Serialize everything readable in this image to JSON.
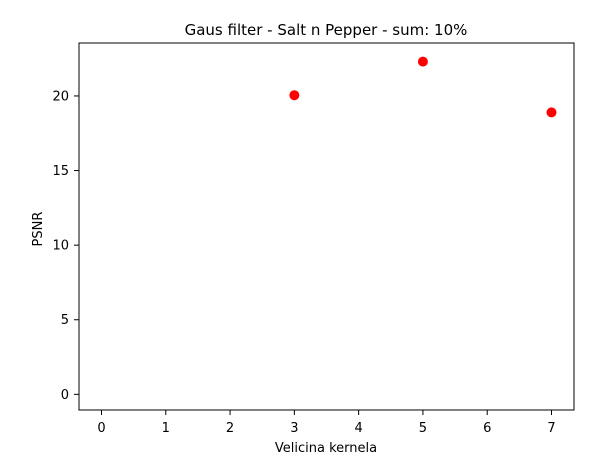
{
  "chart_data": {
    "type": "scatter",
    "title": "Gaus filter - Salt n Pepper - sum: 10%",
    "xlabel": "Velicina kernela",
    "ylabel": "PSNR",
    "x": [
      3,
      5,
      7
    ],
    "y": [
      20.05,
      22.3,
      18.9
    ],
    "xlim": [
      -0.35,
      7.35
    ],
    "ylim": [
      -1.05,
      23.55
    ],
    "xticks": [
      0,
      1,
      2,
      3,
      4,
      5,
      6,
      7
    ],
    "yticks": [
      0,
      5,
      10,
      15,
      20
    ],
    "grid": false,
    "marker_color": "#ff0000",
    "frame_color": "#000000",
    "background": "#ffffff"
  }
}
